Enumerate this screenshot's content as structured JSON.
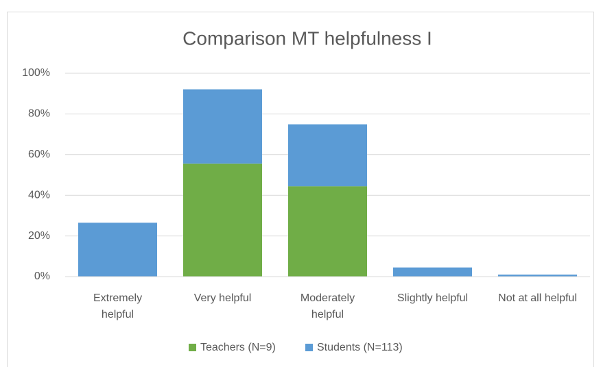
{
  "chart_data": {
    "type": "bar",
    "stacked": true,
    "title": "Comparison MT helpfulness I",
    "categories": [
      "Extremely helpful",
      "Very helpful",
      "Moderately helpful",
      "Slightly helpful",
      "Not at all helpful"
    ],
    "series": [
      {
        "name": "Teachers (N=9)",
        "color": "#70ad47",
        "values": [
          0,
          55.6,
          44.4,
          0,
          0
        ]
      },
      {
        "name": "Students (N=113)",
        "color": "#5b9bd5",
        "values": [
          26.5,
          36.5,
          30.5,
          4.5,
          1
        ]
      }
    ],
    "ylim": [
      0,
      100
    ],
    "yticks": [
      {
        "value": 0,
        "label": "0%"
      },
      {
        "value": 20,
        "label": "20%"
      },
      {
        "value": 40,
        "label": "40%"
      },
      {
        "value": 60,
        "label": "60%"
      },
      {
        "value": 80,
        "label": "80%"
      },
      {
        "value": 100,
        "label": "100%"
      }
    ],
    "grid": true,
    "legend": "bottom"
  }
}
